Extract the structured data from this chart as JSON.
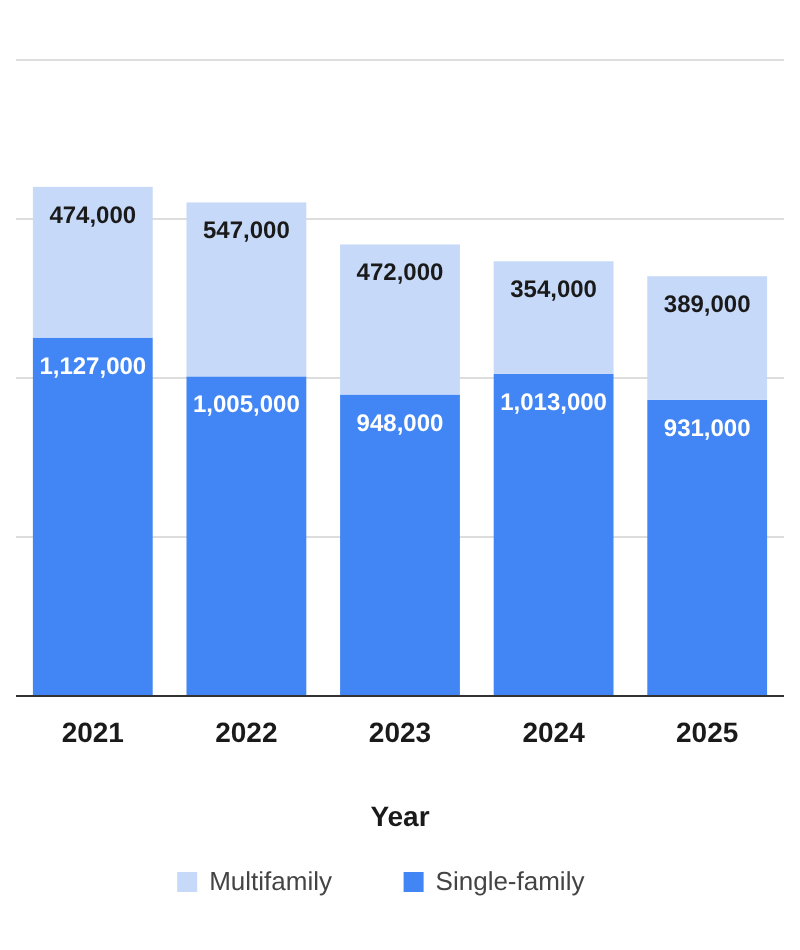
{
  "chart_data": {
    "type": "bar",
    "xlabel": "Year",
    "categories": [
      "2021",
      "2022",
      "2023",
      "2024",
      "2025"
    ],
    "series": [
      {
        "name": "Single-family",
        "color": "#4285f4",
        "values": [
          1127000,
          1005000,
          948000,
          1013000,
          931000
        ],
        "value_labels": [
          "1,127,000",
          "1,005,000",
          "948,000",
          "1,013,000",
          "931,000"
        ]
      },
      {
        "name": "Multifamily",
        "color": "#c6d9f8",
        "values": [
          474000,
          547000,
          472000,
          354000,
          389000
        ],
        "value_labels": [
          "474,000",
          "547,000",
          "472,000",
          "354,000",
          "389,000"
        ]
      }
    ],
    "stacked": true,
    "tick_labels": "x",
    "grid": "y",
    "legend": "bottom"
  }
}
